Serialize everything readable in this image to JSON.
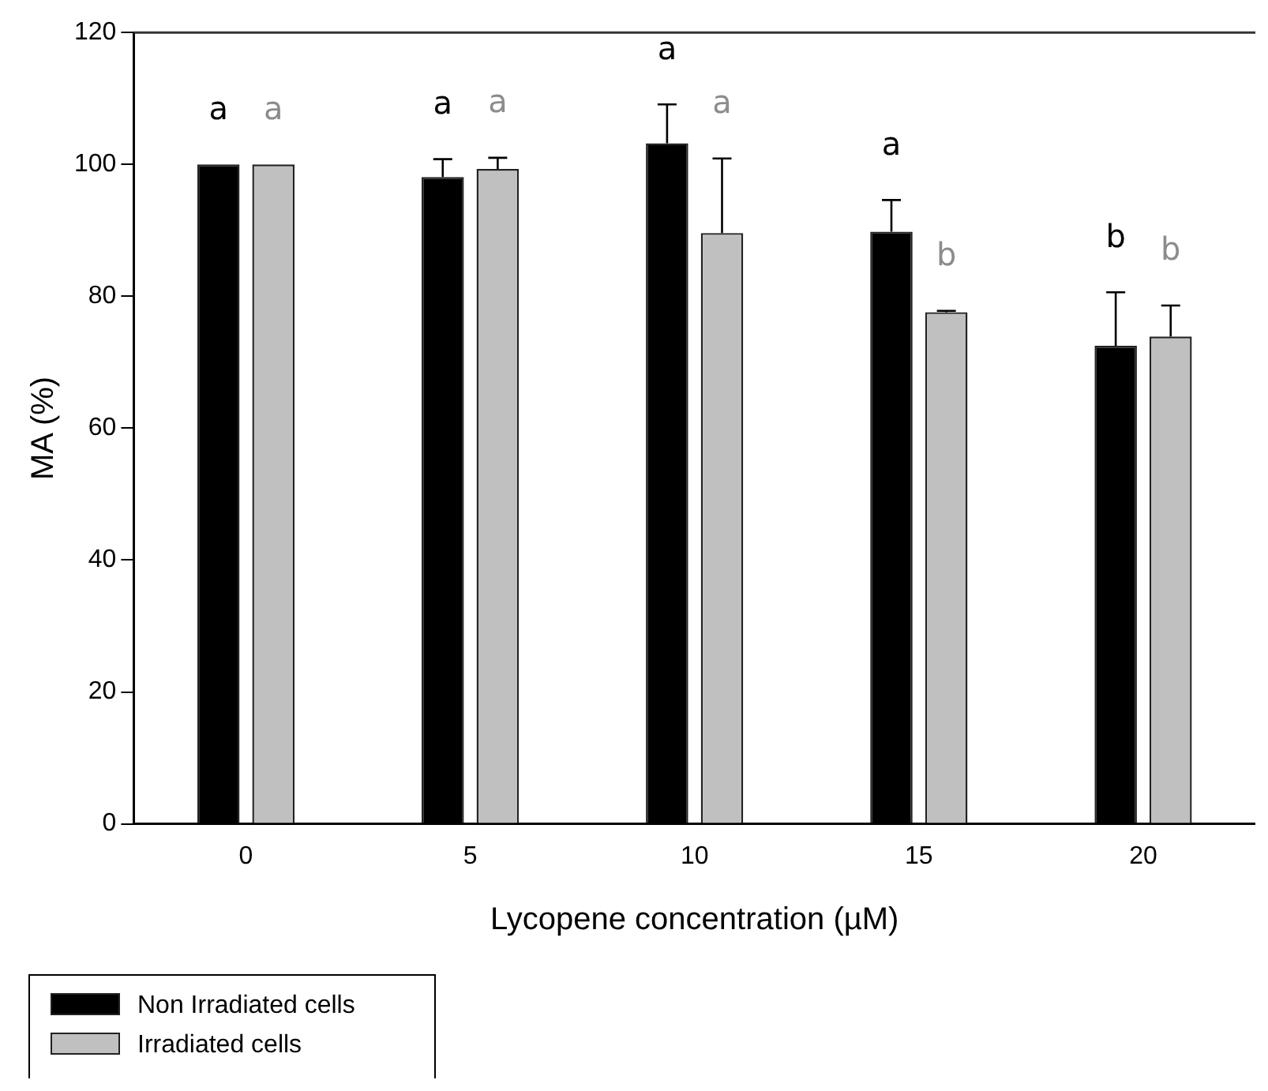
{
  "chart_data": {
    "type": "bar",
    "xlabel": "Lycopene concentration (µM)",
    "ylabel": "MA (%)",
    "categories": [
      "0",
      "5",
      "10",
      "15",
      "20"
    ],
    "series": [
      {
        "name": "Non Irradiated cells",
        "color": "#000000",
        "values": [
          100,
          98.1,
          103.2,
          89.8,
          72.5
        ],
        "errors": [
          null,
          [
            98.1,
            100.8
          ],
          [
            103.2,
            109.1
          ],
          [
            89.8,
            94.6
          ],
          [
            72.5,
            80.6
          ]
        ]
      },
      {
        "name": "Irradiated cells",
        "color": "#c0c0c0",
        "values": [
          100,
          99.3,
          89.6,
          77.6,
          73.9
        ],
        "errors": [
          null,
          [
            99.3,
            101.0
          ],
          [
            89.6,
            100.9
          ],
          [
            77.6,
            77.8
          ],
          [
            73.9,
            78.6
          ]
        ]
      }
    ],
    "annotations": [
      "a",
      "a",
      "a",
      "a",
      "a",
      "a",
      "a",
      "b",
      "b",
      "b"
    ],
    "ylim": [
      0,
      120
    ],
    "yticks": [
      0,
      20,
      40,
      60,
      80,
      100,
      120
    ],
    "grid": false,
    "legend": "bottom left"
  }
}
